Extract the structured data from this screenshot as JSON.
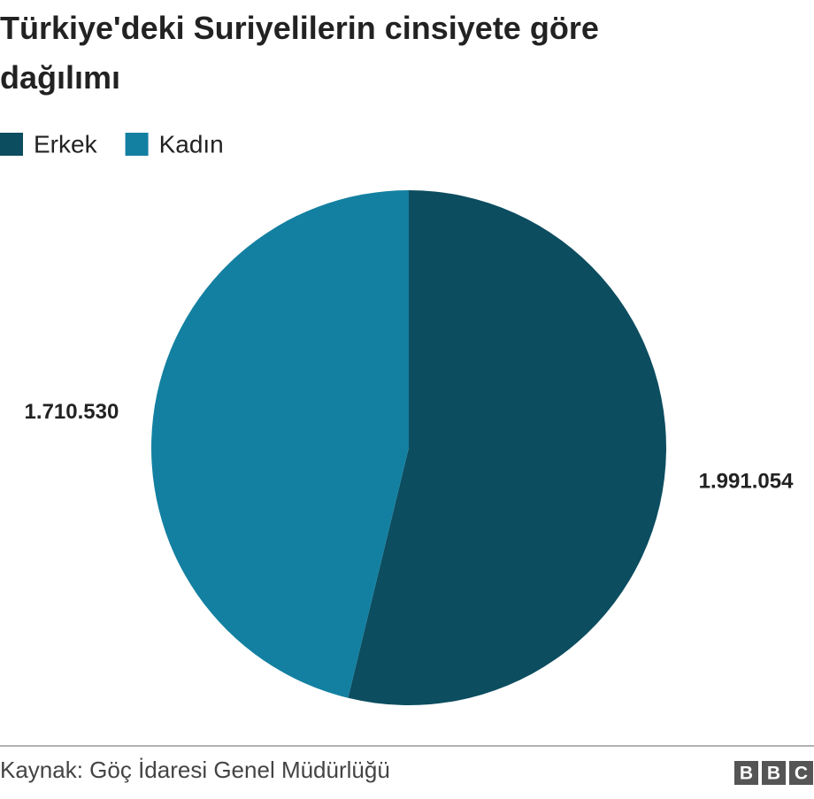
{
  "chart_data": {
    "type": "pie",
    "title": "Türkiye'deki Suriyelilerin cinsiyete göre dağılımı",
    "categories": [
      "Erkek",
      "Kadın"
    ],
    "values": [
      1991054,
      1710530
    ],
    "value_labels": [
      "1.991.054",
      "1.710.530"
    ],
    "colors": [
      "#0c4d60",
      "#1380a1"
    ],
    "source": "Kaynak: Göç İdaresi Genel Müdürlüğü",
    "logo": [
      "B",
      "B",
      "C"
    ]
  }
}
